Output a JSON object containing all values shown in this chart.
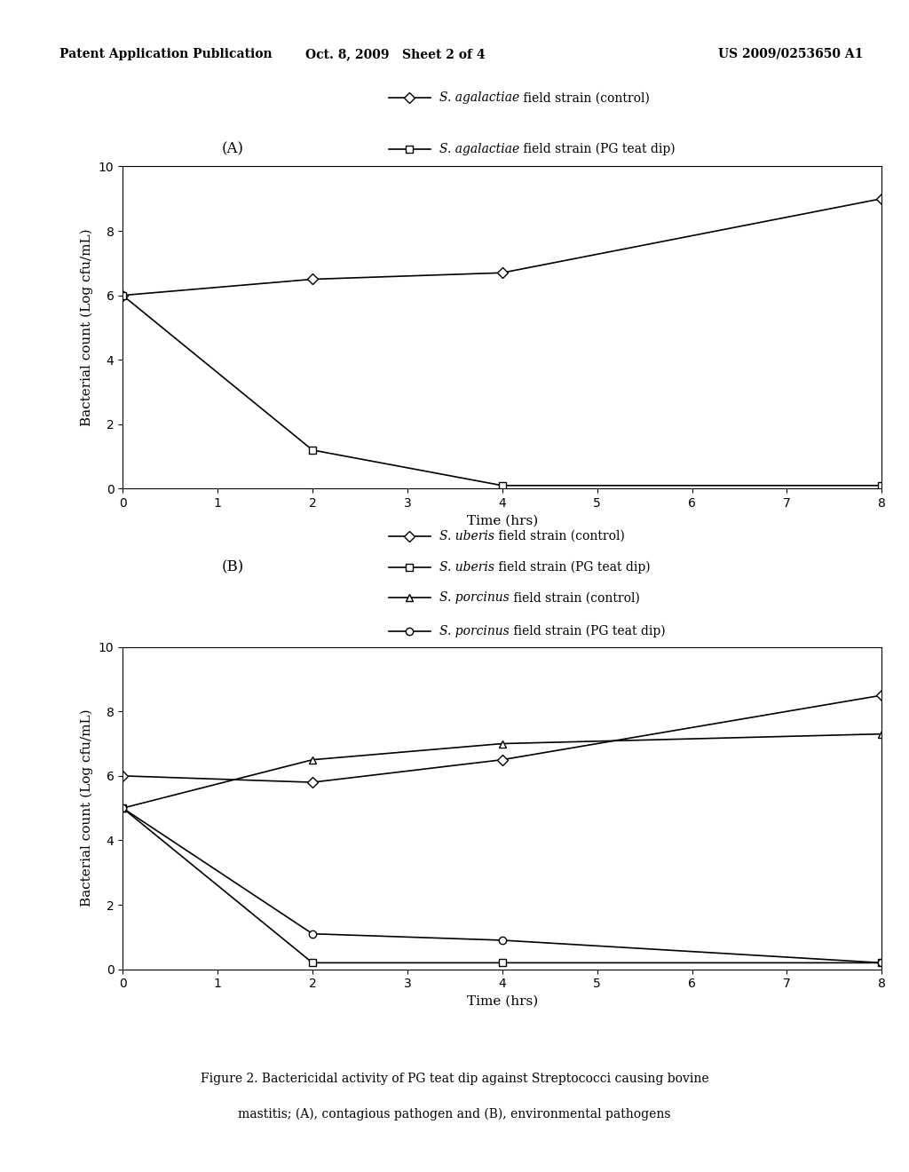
{
  "header_left": "Patent Application Publication",
  "header_center": "Oct. 8, 2009   Sheet 2 of 4",
  "header_right": "US 2009/0253650 A1",
  "panel_A": {
    "label": "(A)",
    "series": [
      {
        "italic": "S. agalactiae",
        "normal": " field strain (control)",
        "marker": "D",
        "x": [
          0,
          2,
          4,
          8
        ],
        "y": [
          6.0,
          6.5,
          6.7,
          9.0
        ]
      },
      {
        "italic": "S. agalactiae",
        "normal": " field strain (PG teat dip)",
        "marker": "s",
        "x": [
          0,
          2,
          4,
          8
        ],
        "y": [
          6.0,
          1.2,
          0.1,
          0.1
        ]
      }
    ],
    "xlabel": "Time (hrs)",
    "ylabel": "Bacterial count (Log cfu/mL)",
    "ylim": [
      0,
      10
    ],
    "xlim": [
      0,
      8
    ],
    "yticks": [
      0,
      2,
      4,
      6,
      8,
      10
    ],
    "xticks": [
      0,
      1,
      2,
      3,
      4,
      5,
      6,
      7,
      8
    ]
  },
  "panel_B": {
    "label": "(B)",
    "series": [
      {
        "italic": "S. uberis",
        "normal": " field strain (control)",
        "marker": "D",
        "x": [
          0,
          2,
          4,
          8
        ],
        "y": [
          6.0,
          5.8,
          6.5,
          8.5
        ]
      },
      {
        "italic": "S. uberis",
        "normal": " field strain (PG teat dip)",
        "marker": "s",
        "x": [
          0,
          2,
          4,
          8
        ],
        "y": [
          5.0,
          0.2,
          0.2,
          0.2
        ]
      },
      {
        "italic": "S. porcinus",
        "normal": " field strain (control)",
        "marker": "^",
        "x": [
          0,
          2,
          4,
          8
        ],
        "y": [
          5.0,
          6.5,
          7.0,
          7.3
        ]
      },
      {
        "italic": "S. porcinus",
        "normal": " field strain (PG teat dip)",
        "marker": "o",
        "x": [
          0,
          2,
          4,
          8
        ],
        "y": [
          5.0,
          1.1,
          0.9,
          0.2
        ]
      }
    ],
    "xlabel": "Time (hrs)",
    "ylabel": "Bacterial count (Log cfu/mL)",
    "ylim": [
      0,
      10
    ],
    "xlim": [
      0,
      8
    ],
    "yticks": [
      0,
      2,
      4,
      6,
      8,
      10
    ],
    "xticks": [
      0,
      1,
      2,
      3,
      4,
      5,
      6,
      7,
      8
    ]
  },
  "caption_line1": "Figure 2. Bactericidal activity of PG teat dip against Streptococci causing bovine",
  "caption_line2": "mastitis; (A), contagious pathogen and (B), environmental pathogens",
  "background_color": "#ffffff",
  "line_color": "#000000",
  "marker_size": 6,
  "line_width": 1.2,
  "font_size_axis_label": 11,
  "font_size_tick": 10,
  "font_size_legend": 10,
  "font_size_panel_label": 12,
  "font_size_header": 10,
  "font_size_caption": 10
}
